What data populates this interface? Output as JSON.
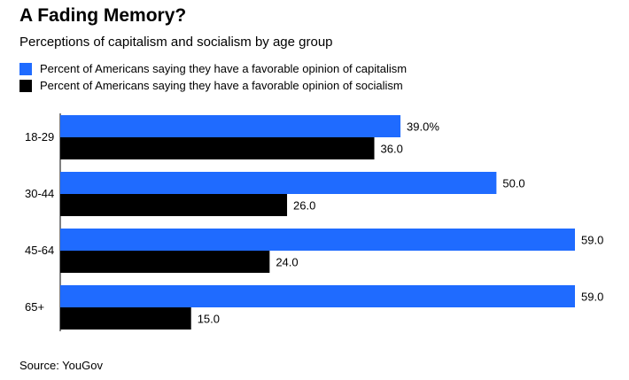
{
  "title": "A Fading Memory?",
  "subtitle": "Perceptions of capitalism and socialism by age group",
  "source": "Source: YouGov",
  "chart_data": {
    "type": "bar",
    "orientation": "horizontal",
    "title": "A Fading Memory?",
    "subtitle": "Perceptions of capitalism and socialism by age group",
    "categories": [
      "18-29",
      "30-44",
      "45-64",
      "65+"
    ],
    "series": [
      {
        "name": "Percent of Americans saying they have a favorable opinion of capitalism",
        "color": "#1f6bff",
        "values": [
          39.0,
          50.0,
          59.0,
          59.0
        ],
        "labels": [
          "39.0%",
          "50.0",
          "59.0",
          "59.0"
        ]
      },
      {
        "name": "Percent of Americans saying they have a favorable opinion of socialism",
        "color": "#000000",
        "values": [
          36.0,
          26.0,
          24.0,
          15.0
        ],
        "labels": [
          "36.0",
          "26.0",
          "24.0",
          "15.0"
        ]
      }
    ],
    "xlim": [
      0,
      59
    ],
    "grid": false,
    "legend_position": "top-left"
  }
}
